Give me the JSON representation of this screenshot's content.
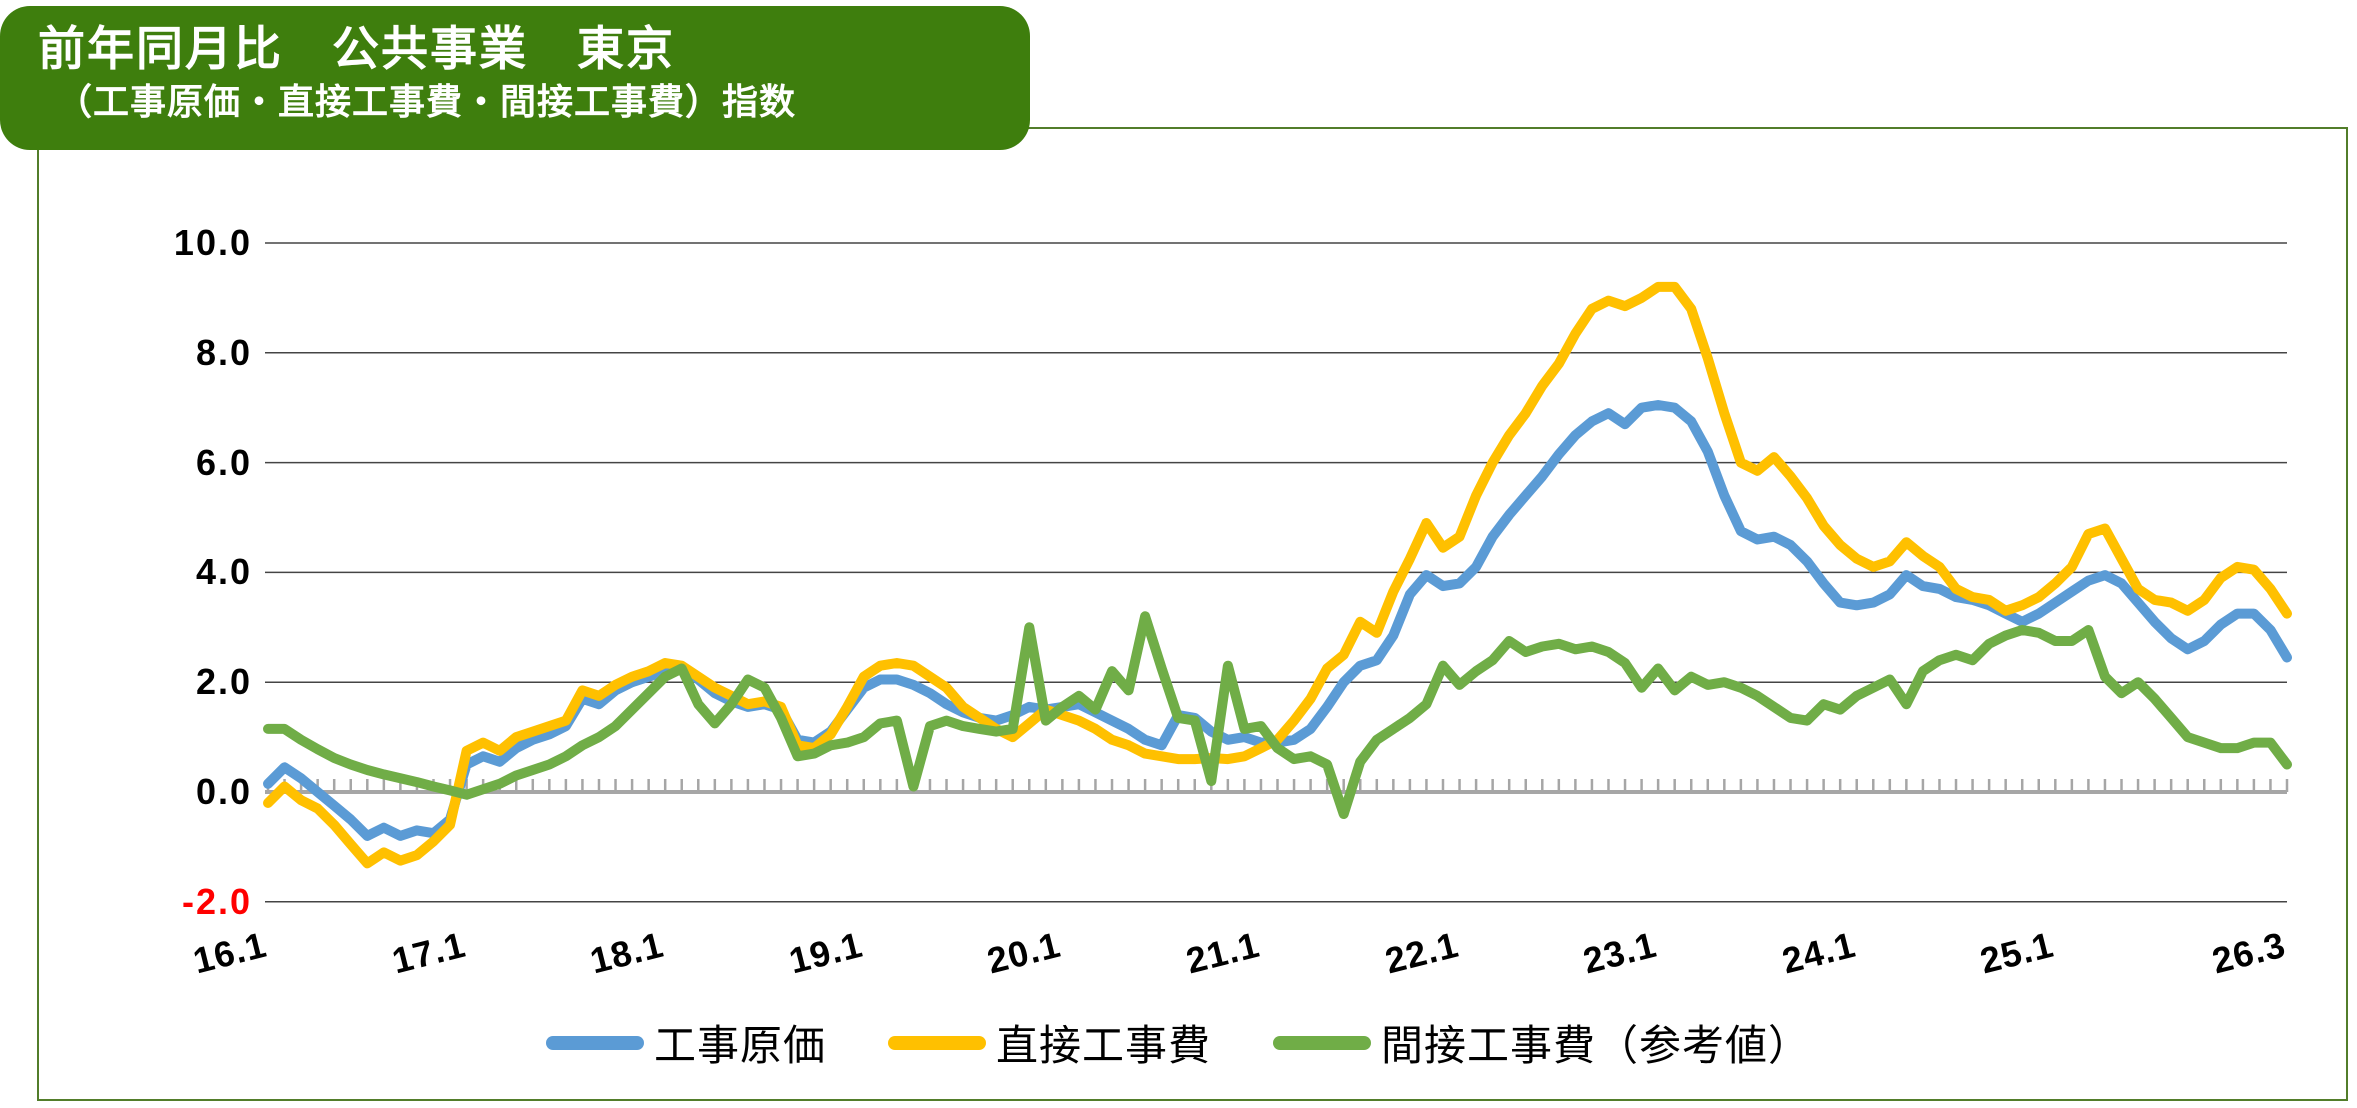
{
  "title": {
    "line1": "前年同月比　公共事業　東京",
    "line2": "（工事原価・直接工事費・間接工事費）指数"
  },
  "colors": {
    "title_box_bg": "#3e7e0d",
    "title_text": "#ffffff",
    "frame_border": "#527d2a",
    "gridline": "#454545",
    "zero_axis": "#a6a6a6",
    "negative_tick_label": "#ff0000",
    "series_blue": "#5B9BD5",
    "series_yellow": "#FFC000",
    "series_green": "#70AD47"
  },
  "legend": {
    "items": [
      {
        "label": "工事原価",
        "color_key": "series_blue"
      },
      {
        "label": "直接工事費",
        "color_key": "series_yellow"
      },
      {
        "label": "間接工事費（参考値）",
        "color_key": "series_green"
      }
    ]
  },
  "chart_data": {
    "type": "line",
    "title": "前年同月比　公共事業　東京（工事原価・直接工事費・間接工事費）指数",
    "xlabel": "",
    "ylabel": "",
    "ylim": [
      -2,
      10
    ],
    "y_tick_step": 2,
    "grid": "horizontal",
    "legend_position": "bottom",
    "x_unit": "year.month (monthly data, 2016.1 - 2026.3, 123 points)",
    "y_ticks": [
      {
        "label": "10.0",
        "value": 10,
        "color": "#000000"
      },
      {
        "label": "8.0",
        "value": 8,
        "color": "#000000"
      },
      {
        "label": "6.0",
        "value": 6,
        "color": "#000000"
      },
      {
        "label": "4.0",
        "value": 4,
        "color": "#000000"
      },
      {
        "label": "2.0",
        "value": 2,
        "color": "#000000"
      },
      {
        "label": "0.0",
        "value": 0,
        "color": "#000000"
      },
      {
        "label": "-2.0",
        "value": -2,
        "color": "#ff0000"
      }
    ],
    "x_tick_labels": [
      {
        "label": "16.1",
        "month_index": 0
      },
      {
        "label": "17.1",
        "month_index": 12
      },
      {
        "label": "18.1",
        "month_index": 24
      },
      {
        "label": "19.1",
        "month_index": 36
      },
      {
        "label": "20.1",
        "month_index": 48
      },
      {
        "label": "21.1",
        "month_index": 60
      },
      {
        "label": "22.1",
        "month_index": 72
      },
      {
        "label": "23.1",
        "month_index": 84
      },
      {
        "label": "24.1",
        "month_index": 96
      },
      {
        "label": "25.1",
        "month_index": 108
      },
      {
        "label": "26.3",
        "month_index": 122
      }
    ],
    "series": [
      {
        "name": "工事原価",
        "color_key": "series_blue",
        "values": [
          0.15,
          0.45,
          0.25,
          0,
          -0.25,
          -0.5,
          -0.8,
          -0.65,
          -0.8,
          -0.7,
          -0.75,
          -0.5,
          0.5,
          0.65,
          0.55,
          0.8,
          0.95,
          1.05,
          1.2,
          1.7,
          1.6,
          1.85,
          2,
          2.1,
          2.2,
          2.25,
          2.05,
          1.8,
          1.65,
          1.55,
          1.6,
          1.5,
          0.95,
          0.9,
          1.1,
          1.5,
          1.9,
          2.05,
          2.05,
          1.95,
          1.8,
          1.6,
          1.45,
          1.35,
          1.3,
          1.4,
          1.55,
          1.5,
          1.55,
          1.6,
          1.45,
          1.3,
          1.15,
          0.95,
          0.85,
          1.4,
          1.35,
          1.1,
          0.95,
          1,
          0.9,
          0.9,
          0.95,
          1.15,
          1.55,
          2,
          2.3,
          2.4,
          2.85,
          3.6,
          3.95,
          3.75,
          3.8,
          4.1,
          4.65,
          5.05,
          5.4,
          5.75,
          6.15,
          6.5,
          6.75,
          6.9,
          6.7,
          7,
          7.05,
          7,
          6.75,
          6.2,
          5.4,
          4.75,
          4.6,
          4.65,
          4.5,
          4.2,
          3.8,
          3.45,
          3.4,
          3.45,
          3.6,
          3.95,
          3.75,
          3.7,
          3.55,
          3.5,
          3.4,
          3.25,
          3.1,
          3.25,
          3.45,
          3.65,
          3.85,
          3.95,
          3.8,
          3.45,
          3.1,
          2.8,
          2.6,
          2.75,
          3.05,
          3.25,
          3.25,
          2.95,
          2.45
        ]
      },
      {
        "name": "直接工事費",
        "color_key": "series_yellow",
        "values": [
          -0.2,
          0.1,
          -0.15,
          -0.3,
          -0.6,
          -0.95,
          -1.3,
          -1.1,
          -1.25,
          -1.15,
          -0.9,
          -0.6,
          0.75,
          0.9,
          0.75,
          1,
          1.1,
          1.2,
          1.3,
          1.85,
          1.75,
          1.95,
          2.1,
          2.2,
          2.35,
          2.3,
          2.1,
          1.9,
          1.75,
          1.6,
          1.65,
          1.55,
          0.85,
          0.8,
          1.05,
          1.55,
          2.1,
          2.3,
          2.35,
          2.3,
          2.1,
          1.9,
          1.55,
          1.35,
          1.15,
          1,
          1.25,
          1.5,
          1.4,
          1.3,
          1.15,
          0.95,
          0.85,
          0.7,
          0.65,
          0.6,
          0.6,
          0.62,
          0.6,
          0.65,
          0.8,
          0.95,
          1.3,
          1.7,
          2.25,
          2.5,
          3.1,
          2.9,
          3.65,
          4.25,
          4.9,
          4.45,
          4.65,
          5.4,
          6,
          6.5,
          6.9,
          7.4,
          7.8,
          8.35,
          8.8,
          8.95,
          8.85,
          9,
          9.2,
          9.2,
          8.8,
          7.9,
          6.9,
          6,
          5.85,
          6.1,
          5.75,
          5.35,
          4.85,
          4.5,
          4.25,
          4.1,
          4.2,
          4.55,
          4.3,
          4.1,
          3.7,
          3.55,
          3.5,
          3.3,
          3.4,
          3.55,
          3.8,
          4.1,
          4.7,
          4.8,
          4.25,
          3.7,
          3.5,
          3.45,
          3.3,
          3.5,
          3.9,
          4.1,
          4.05,
          3.7,
          3.25
        ]
      },
      {
        "name": "間接工事費（参考値）",
        "color_key": "series_green",
        "values": [
          1.15,
          1.15,
          0.95,
          0.78,
          0.62,
          0.5,
          0.4,
          0.32,
          0.25,
          0.18,
          0.1,
          0.03,
          -0.05,
          0.05,
          0.15,
          0.3,
          0.4,
          0.5,
          0.65,
          0.85,
          1,
          1.2,
          1.5,
          1.8,
          2.1,
          2.25,
          1.6,
          1.25,
          1.6,
          2.05,
          1.9,
          1.35,
          0.65,
          0.7,
          0.85,
          0.9,
          1,
          1.25,
          1.3,
          0.1,
          1.2,
          1.3,
          1.2,
          1.15,
          1.1,
          1.15,
          3,
          1.3,
          1.55,
          1.75,
          1.5,
          2.2,
          1.85,
          3.2,
          2.25,
          1.35,
          1.3,
          0.2,
          2.3,
          1.15,
          1.2,
          0.8,
          0.6,
          0.65,
          0.5,
          -0.4,
          0.55,
          0.95,
          1.15,
          1.35,
          1.6,
          2.3,
          1.95,
          2.2,
          2.4,
          2.75,
          2.55,
          2.65,
          2.7,
          2.6,
          2.65,
          2.55,
          2.35,
          1.9,
          2.25,
          1.85,
          2.1,
          1.95,
          2,
          1.9,
          1.75,
          1.55,
          1.35,
          1.3,
          1.6,
          1.5,
          1.75,
          1.9,
          2.05,
          1.6,
          2.2,
          2.4,
          2.5,
          2.4,
          2.7,
          2.85,
          2.95,
          2.9,
          2.75,
          2.75,
          2.95,
          2.1,
          1.8,
          2,
          1.7,
          1.35,
          1,
          0.9,
          0.8,
          0.8,
          0.9,
          0.9,
          0.5
        ]
      }
    ]
  }
}
